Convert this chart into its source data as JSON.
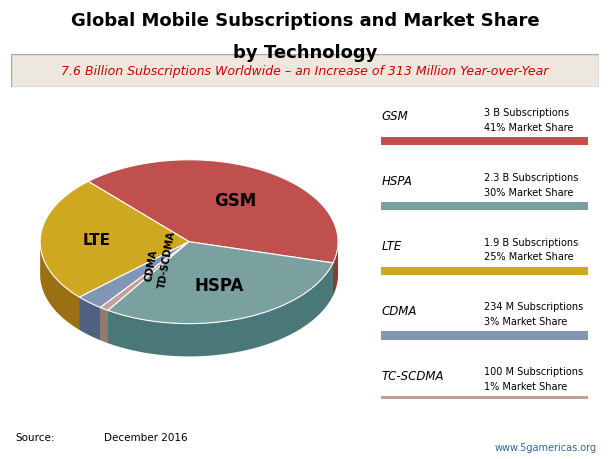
{
  "title_line1": "Global Mobile Subscriptions and Market Share",
  "title_line2": "by Technology",
  "subtitle": "7.6 Billion Subscriptions Worldwide – an Increase of 313 Million Year-over-Year",
  "categories": [
    "GSM",
    "LTE",
    "CDMA",
    "TD-SCDMA",
    "HSPA"
  ],
  "values": [
    41,
    25,
    3,
    1,
    30
  ],
  "colors": [
    "#C0504D",
    "#CFA822",
    "#8096B4",
    "#C4A098",
    "#7BA0A0"
  ],
  "shadow_colors": [
    "#8B3A38",
    "#9A7010",
    "#506080",
    "#967870",
    "#4A7878"
  ],
  "legend_items": [
    {
      "label": "GSM",
      "sub": "3 B Subscriptions",
      "share": "41% Market Share",
      "color": "#C0504D"
    },
    {
      "label": "HSPA",
      "sub": "2.3 B Subscriptions",
      "share": "30% Market Share",
      "color": "#7BA0A0"
    },
    {
      "label": "LTE",
      "sub": "1.9 B Subscriptions",
      "share": "25% Market Share",
      "color": "#CFA822"
    },
    {
      "label": "CDMA",
      "sub": "234 M Subscriptions",
      "share": "3% Market Share",
      "color": "#8096B4"
    },
    {
      "label": "TC-SCDMA",
      "sub": "100 M Subscriptions",
      "share": "1% Market Share",
      "color": "#C4A098"
    }
  ],
  "source_text": "Source:",
  "source_date": "December 2016",
  "website": "www.5gamericas.org",
  "background_color": "#FFFFFF",
  "subtitle_box_color": "#EDE8DD",
  "subtitle_text_color": "#CC0000",
  "title_fontsize": 13,
  "subtitle_fontsize": 9
}
